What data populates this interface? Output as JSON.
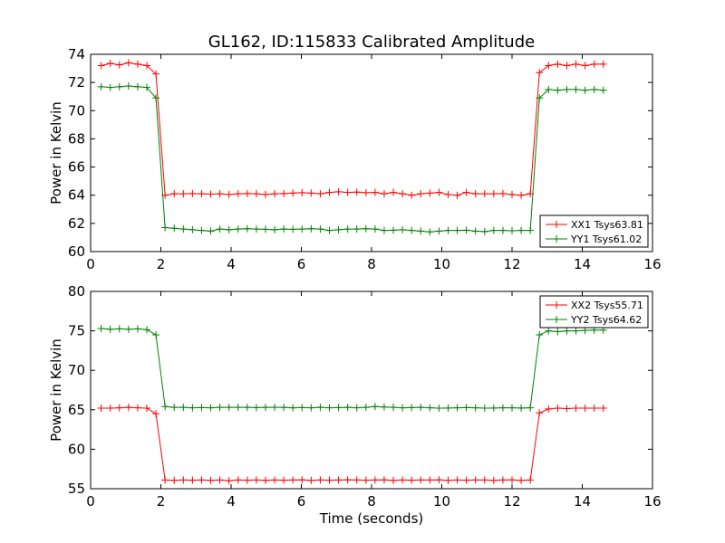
{
  "chart_data": [
    {
      "type": "line",
      "title": "GL162, ID:115833 Calibrated Amplitude",
      "xlabel": "",
      "ylabel": "Power in Kelvin",
      "xlim": [
        0,
        16
      ],
      "ylim": [
        60,
        74
      ],
      "xticks": [
        0,
        2,
        4,
        6,
        8,
        10,
        12,
        14,
        16
      ],
      "yticks": [
        60,
        62,
        64,
        66,
        68,
        70,
        72,
        74
      ],
      "grid": false,
      "legend_position": "lower-right",
      "x": [
        0.3,
        0.56,
        0.82,
        1.08,
        1.34,
        1.6,
        1.86,
        2.12,
        2.38,
        2.64,
        2.9,
        3.16,
        3.42,
        3.68,
        3.94,
        4.2,
        4.46,
        4.72,
        4.98,
        5.24,
        5.5,
        5.76,
        6.02,
        6.28,
        6.54,
        6.8,
        7.06,
        7.32,
        7.58,
        7.84,
        8.1,
        8.36,
        8.62,
        8.88,
        9.14,
        9.4,
        9.66,
        9.92,
        10.18,
        10.44,
        10.7,
        10.96,
        11.22,
        11.48,
        11.74,
        12.0,
        12.26,
        12.52,
        12.78,
        13.04,
        13.3,
        13.56,
        13.82,
        14.08,
        14.34,
        14.6
      ],
      "series": [
        {
          "name": "XX1 Tsys63.81",
          "color": "#ff0000",
          "values": [
            73.2,
            73.35,
            73.25,
            73.4,
            73.3,
            73.2,
            72.6,
            64.0,
            64.1,
            64.1,
            64.12,
            64.1,
            64.08,
            64.1,
            64.05,
            64.1,
            64.12,
            64.1,
            64.05,
            64.1,
            64.12,
            64.15,
            64.18,
            64.15,
            64.1,
            64.2,
            64.25,
            64.2,
            64.22,
            64.18,
            64.2,
            64.1,
            64.2,
            64.1,
            64.0,
            64.1,
            64.15,
            64.2,
            64.05,
            64.0,
            64.2,
            64.1,
            64.1,
            64.1,
            64.12,
            64.05,
            64.0,
            64.1,
            72.7,
            73.2,
            73.3,
            73.2,
            73.3,
            73.2,
            73.3,
            73.3
          ]
        },
        {
          "name": "YY1 Tsys61.02",
          "color": "#008000",
          "values": [
            71.7,
            71.65,
            71.7,
            71.75,
            71.7,
            71.65,
            70.9,
            61.7,
            61.65,
            61.6,
            61.55,
            61.5,
            61.45,
            61.6,
            61.55,
            61.6,
            61.62,
            61.6,
            61.58,
            61.55,
            61.6,
            61.58,
            61.6,
            61.62,
            61.6,
            61.5,
            61.55,
            61.6,
            61.6,
            61.62,
            61.6,
            61.5,
            61.52,
            61.55,
            61.5,
            61.45,
            61.4,
            61.45,
            61.5,
            61.5,
            61.52,
            61.45,
            61.42,
            61.5,
            61.5,
            61.48,
            61.5,
            61.5,
            70.9,
            71.5,
            71.45,
            71.5,
            71.5,
            71.45,
            71.5,
            71.45
          ]
        }
      ]
    },
    {
      "type": "line",
      "title": "",
      "xlabel": "Time (seconds)",
      "ylabel": "Power in Kelvin",
      "xlim": [
        0,
        16
      ],
      "ylim": [
        55,
        80
      ],
      "xticks": [
        0,
        2,
        4,
        6,
        8,
        10,
        12,
        14,
        16
      ],
      "yticks": [
        55,
        60,
        65,
        70,
        75,
        80
      ],
      "grid": false,
      "legend_position": "upper-right",
      "x": [
        0.3,
        0.56,
        0.82,
        1.08,
        1.34,
        1.6,
        1.86,
        2.12,
        2.38,
        2.64,
        2.9,
        3.16,
        3.42,
        3.68,
        3.94,
        4.2,
        4.46,
        4.72,
        4.98,
        5.24,
        5.5,
        5.76,
        6.02,
        6.28,
        6.54,
        6.8,
        7.06,
        7.32,
        7.58,
        7.84,
        8.1,
        8.36,
        8.62,
        8.88,
        9.14,
        9.4,
        9.66,
        9.92,
        10.18,
        10.44,
        10.7,
        10.96,
        11.22,
        11.48,
        11.74,
        12.0,
        12.26,
        12.52,
        12.78,
        13.04,
        13.3,
        13.56,
        13.82,
        14.08,
        14.34,
        14.6
      ],
      "series": [
        {
          "name": "XX2 Tsys55.71",
          "color": "#ff0000",
          "values": [
            65.2,
            65.2,
            65.25,
            65.3,
            65.25,
            65.2,
            64.5,
            56.1,
            56.05,
            56.1,
            56.08,
            56.1,
            56.05,
            56.1,
            56.0,
            56.1,
            56.08,
            56.1,
            56.05,
            56.1,
            56.08,
            56.1,
            56.12,
            56.05,
            56.1,
            56.08,
            56.1,
            56.12,
            56.1,
            56.08,
            56.1,
            56.12,
            56.05,
            56.1,
            56.08,
            56.1,
            56.1,
            56.12,
            56.05,
            56.1,
            56.08,
            56.1,
            56.1,
            56.05,
            56.1,
            56.12,
            56.05,
            56.1,
            64.6,
            65.1,
            65.2,
            65.15,
            65.2,
            65.2,
            65.2,
            65.2
          ]
        },
        {
          "name": "YY2 Tsys64.62",
          "color": "#008000",
          "values": [
            75.3,
            75.2,
            75.25,
            75.2,
            75.25,
            75.15,
            74.5,
            65.4,
            65.3,
            65.3,
            65.25,
            65.28,
            65.25,
            65.3,
            65.3,
            65.32,
            65.3,
            65.28,
            65.3,
            65.32,
            65.3,
            65.25,
            65.28,
            65.25,
            65.3,
            65.25,
            65.28,
            65.3,
            65.25,
            65.3,
            65.4,
            65.35,
            65.3,
            65.25,
            65.28,
            65.3,
            65.25,
            65.2,
            65.22,
            65.25,
            65.28,
            65.25,
            65.2,
            65.22,
            65.25,
            65.25,
            65.22,
            65.25,
            74.5,
            75.0,
            74.9,
            75.0,
            75.0,
            75.05,
            75.1,
            75.1
          ]
        }
      ]
    }
  ]
}
